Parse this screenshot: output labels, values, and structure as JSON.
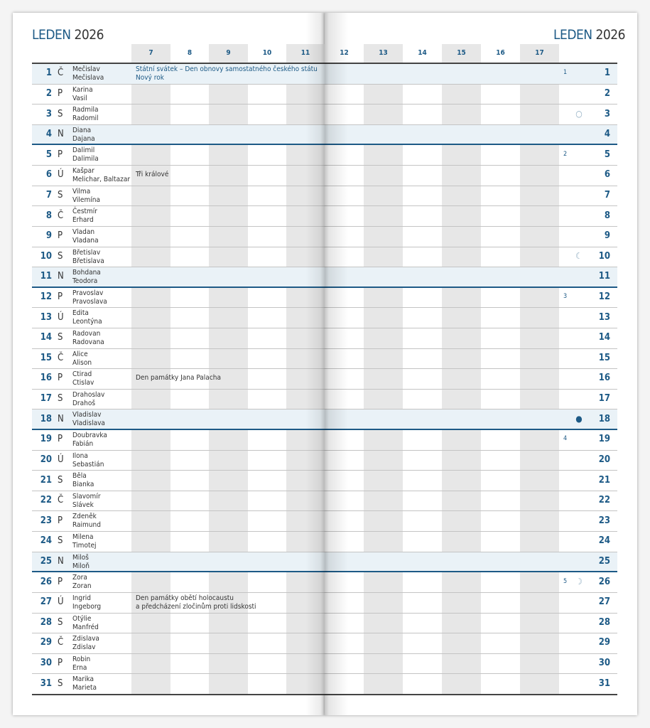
{
  "header": {
    "month": "LEDEN",
    "year": "2026"
  },
  "hours": [
    "7",
    "8",
    "9",
    "10",
    "11",
    "12",
    "13",
    "14",
    "15",
    "16",
    "17"
  ],
  "colors": {
    "accent": "#1d5a86",
    "sunday_row": "#eaf2f7",
    "shaded_column": "#e7e7e7"
  },
  "days": [
    {
      "day": "1",
      "weekday": "Č",
      "names": [
        "Mečislav",
        "Mečislava"
      ],
      "events": [
        "Státní svátek – Den obnovy samostatného českého státu",
        "Nový rok"
      ],
      "event_style": "holiday",
      "week": "1"
    },
    {
      "day": "2",
      "weekday": "P",
      "names": [
        "Karina",
        "Vasil"
      ]
    },
    {
      "day": "3",
      "weekday": "S",
      "names": [
        "Radmila",
        "Radomil"
      ],
      "moon": "full-moon-icon",
      "moon_glyph": "○"
    },
    {
      "day": "4",
      "weekday": "N",
      "names": [
        "Diana",
        "Dajana"
      ],
      "sunday": true
    },
    {
      "day": "5",
      "weekday": "P",
      "names": [
        "Dalimil",
        "Dalimila"
      ],
      "week": "2"
    },
    {
      "day": "6",
      "weekday": "Ú",
      "names": [
        "Kašpar",
        "Melichar, Baltazar"
      ],
      "events": [
        "Tři králové"
      ]
    },
    {
      "day": "7",
      "weekday": "S",
      "names": [
        "Vilma",
        "Vilemína"
      ]
    },
    {
      "day": "8",
      "weekday": "Č",
      "names": [
        "Čestmír",
        "Erhard"
      ]
    },
    {
      "day": "9",
      "weekday": "P",
      "names": [
        "Vladan",
        "Vladana"
      ]
    },
    {
      "day": "10",
      "weekday": "S",
      "names": [
        "Břetislav",
        "Břetislava"
      ],
      "moon": "last-quarter-moon-icon",
      "moon_glyph": "☾"
    },
    {
      "day": "11",
      "weekday": "N",
      "names": [
        "Bohdana",
        "Teodora"
      ],
      "sunday": true
    },
    {
      "day": "12",
      "weekday": "P",
      "names": [
        "Pravoslav",
        "Pravoslava"
      ],
      "week": "3"
    },
    {
      "day": "13",
      "weekday": "Ú",
      "names": [
        "Edita",
        "Leontýna"
      ]
    },
    {
      "day": "14",
      "weekday": "S",
      "names": [
        "Radovan",
        "Radovana"
      ]
    },
    {
      "day": "15",
      "weekday": "Č",
      "names": [
        "Alice",
        "Alison"
      ]
    },
    {
      "day": "16",
      "weekday": "P",
      "names": [
        "Ctirad",
        "Ctislav"
      ],
      "events": [
        "Den památky Jana Palacha"
      ]
    },
    {
      "day": "17",
      "weekday": "S",
      "names": [
        "Drahoslav",
        "Drahoš"
      ]
    },
    {
      "day": "18",
      "weekday": "N",
      "names": [
        "Vladislav",
        "Vladislava"
      ],
      "sunday": true,
      "moon": "new-moon-icon",
      "moon_glyph": "●"
    },
    {
      "day": "19",
      "weekday": "P",
      "names": [
        "Doubravka",
        "Fabián"
      ],
      "week": "4"
    },
    {
      "day": "20",
      "weekday": "Ú",
      "names": [
        "Ilona",
        "Sebastián"
      ]
    },
    {
      "day": "21",
      "weekday": "S",
      "names": [
        "Běla",
        "Bianka"
      ]
    },
    {
      "day": "22",
      "weekday": "Č",
      "names": [
        "Slavomír",
        "Slávek"
      ]
    },
    {
      "day": "23",
      "weekday": "P",
      "names": [
        "Zdeněk",
        "Raimund"
      ]
    },
    {
      "day": "24",
      "weekday": "S",
      "names": [
        "Milena",
        "Timotej"
      ]
    },
    {
      "day": "25",
      "weekday": "N",
      "names": [
        "Miloš",
        "Miloň"
      ],
      "sunday": true
    },
    {
      "day": "26",
      "weekday": "P",
      "names": [
        "Zora",
        "Zoran"
      ],
      "week": "5",
      "moon": "first-quarter-moon-icon",
      "moon_glyph": "☽"
    },
    {
      "day": "27",
      "weekday": "Ú",
      "names": [
        "Ingrid",
        "Ingeborg"
      ],
      "events": [
        "Den památky obětí holocaustu",
        "a předcházení zločinům proti lidskosti"
      ]
    },
    {
      "day": "28",
      "weekday": "S",
      "names": [
        "Otýlie",
        "Manfréd"
      ]
    },
    {
      "day": "29",
      "weekday": "Č",
      "names": [
        "Zdislava",
        "Zdislav"
      ]
    },
    {
      "day": "30",
      "weekday": "P",
      "names": [
        "Robin",
        "Erna"
      ]
    },
    {
      "day": "31",
      "weekday": "S",
      "names": [
        "Marika",
        "Marieta"
      ]
    }
  ]
}
